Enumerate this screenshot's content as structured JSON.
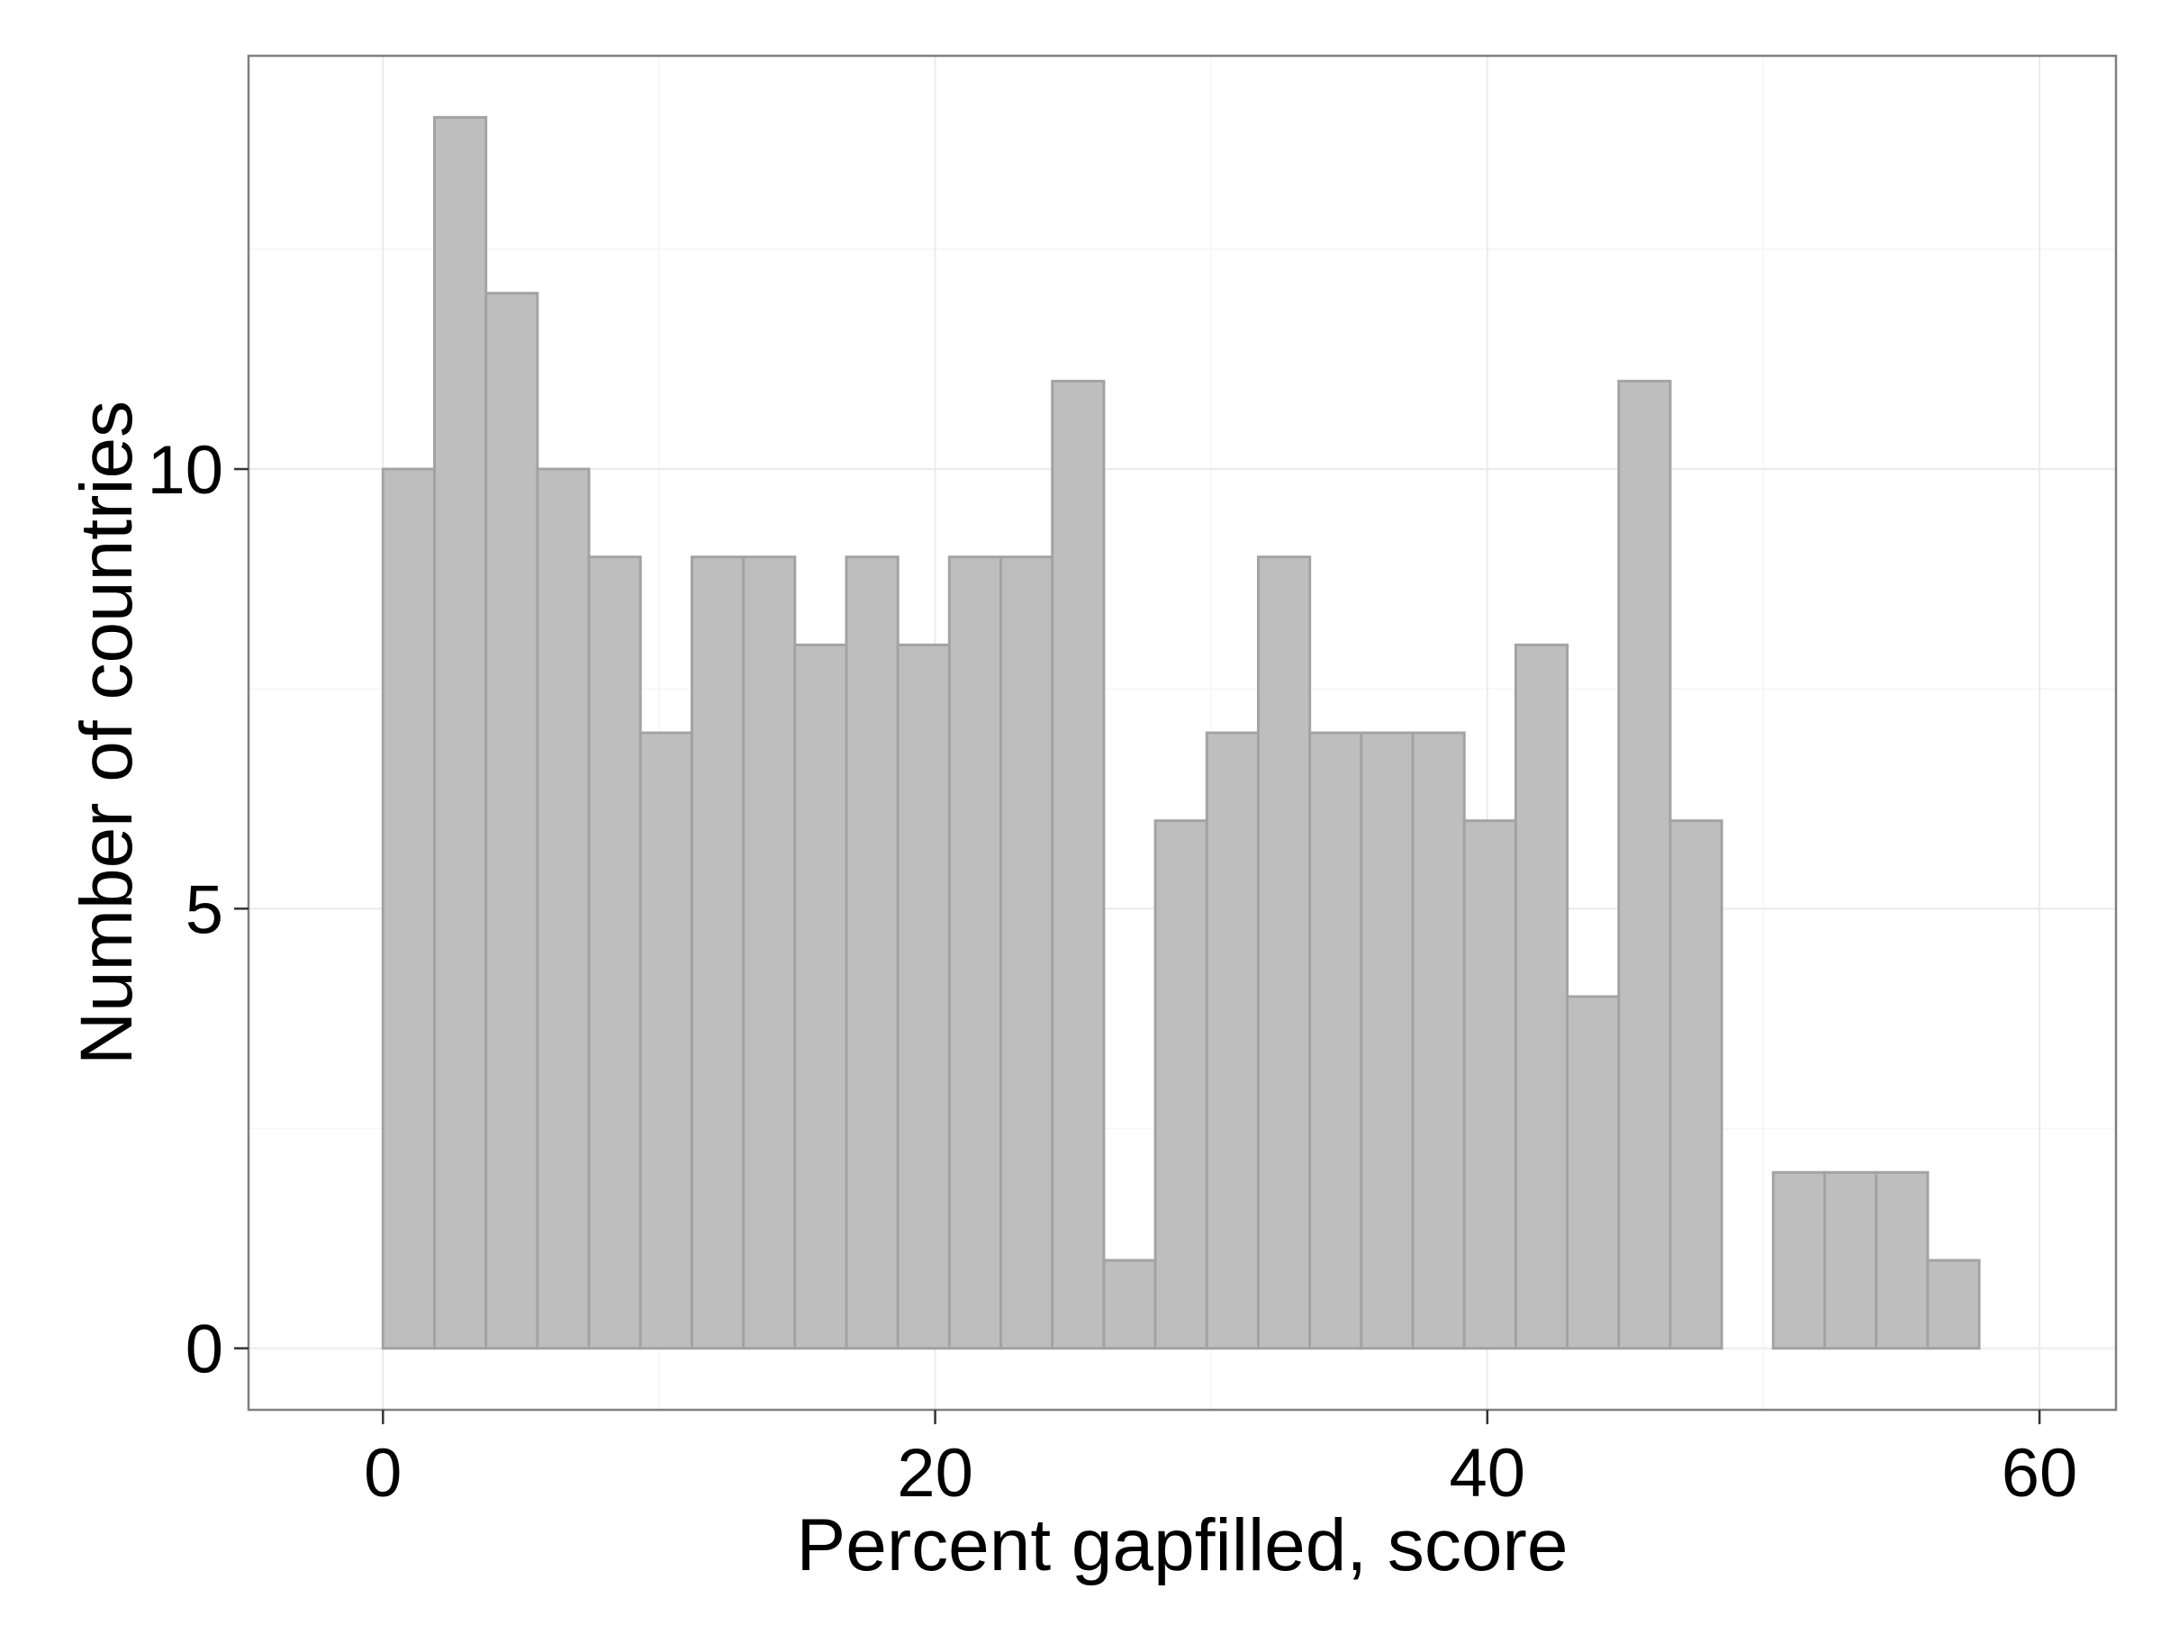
{
  "chart_data": {
    "type": "bar",
    "subtype": "histogram",
    "title": "",
    "xlabel": "Percent gapfilled, score",
    "ylabel": "Number of countries",
    "xlim": [
      -4.87,
      62.77
    ],
    "ylim": [
      -0.7,
      14.7
    ],
    "x_ticks": [
      0,
      20,
      40,
      60
    ],
    "x_minor_ticks": [
      10,
      30,
      50
    ],
    "y_ticks": [
      0,
      5,
      10
    ],
    "y_minor_ticks": [
      2.5,
      7.5,
      12.5
    ],
    "grid": true,
    "legend": "none",
    "bin_width": 1.865,
    "bins": [
      {
        "x0": -1.865,
        "x1": 0.0,
        "count": 0
      },
      {
        "x0": 0.0,
        "x1": 1.865,
        "count": 10
      },
      {
        "x0": 1.865,
        "x1": 3.73,
        "count": 14
      },
      {
        "x0": 3.73,
        "x1": 5.595,
        "count": 12
      },
      {
        "x0": 5.595,
        "x1": 7.46,
        "count": 10
      },
      {
        "x0": 7.46,
        "x1": 9.325,
        "count": 9
      },
      {
        "x0": 9.325,
        "x1": 11.19,
        "count": 7
      },
      {
        "x0": 11.19,
        "x1": 13.055,
        "count": 9
      },
      {
        "x0": 13.055,
        "x1": 14.92,
        "count": 9
      },
      {
        "x0": 14.92,
        "x1": 16.785,
        "count": 8
      },
      {
        "x0": 16.785,
        "x1": 18.65,
        "count": 9
      },
      {
        "x0": 18.65,
        "x1": 20.515,
        "count": 8
      },
      {
        "x0": 20.515,
        "x1": 22.38,
        "count": 9
      },
      {
        "x0": 22.38,
        "x1": 24.245,
        "count": 9
      },
      {
        "x0": 24.245,
        "x1": 26.11,
        "count": 11
      },
      {
        "x0": 26.11,
        "x1": 27.975,
        "count": 1
      },
      {
        "x0": 27.975,
        "x1": 29.84,
        "count": 6
      },
      {
        "x0": 29.84,
        "x1": 31.705,
        "count": 7
      },
      {
        "x0": 31.705,
        "x1": 33.57,
        "count": 9
      },
      {
        "x0": 33.57,
        "x1": 35.435,
        "count": 7
      },
      {
        "x0": 35.435,
        "x1": 37.3,
        "count": 7
      },
      {
        "x0": 37.3,
        "x1": 39.165,
        "count": 7
      },
      {
        "x0": 39.165,
        "x1": 41.03,
        "count": 6
      },
      {
        "x0": 41.03,
        "x1": 42.895,
        "count": 8
      },
      {
        "x0": 42.895,
        "x1": 44.76,
        "count": 4
      },
      {
        "x0": 44.76,
        "x1": 46.625,
        "count": 11
      },
      {
        "x0": 46.625,
        "x1": 48.49,
        "count": 6
      },
      {
        "x0": 48.49,
        "x1": 50.355,
        "count": 0
      },
      {
        "x0": 50.355,
        "x1": 52.22,
        "count": 2
      },
      {
        "x0": 52.22,
        "x1": 54.085,
        "count": 2
      },
      {
        "x0": 54.085,
        "x1": 55.95,
        "count": 2
      },
      {
        "x0": 55.95,
        "x1": 57.815,
        "count": 1
      },
      {
        "x0": 57.815,
        "x1": 59.68,
        "count": 0
      }
    ],
    "colors": {
      "bar_fill": "#bebebe",
      "bar_stroke": "#a3a3a3",
      "panel_border": "#7f7f7f",
      "major_grid": "#ebebeb",
      "minor_grid": "#f5f5f5",
      "tick_mark": "#333333"
    }
  }
}
